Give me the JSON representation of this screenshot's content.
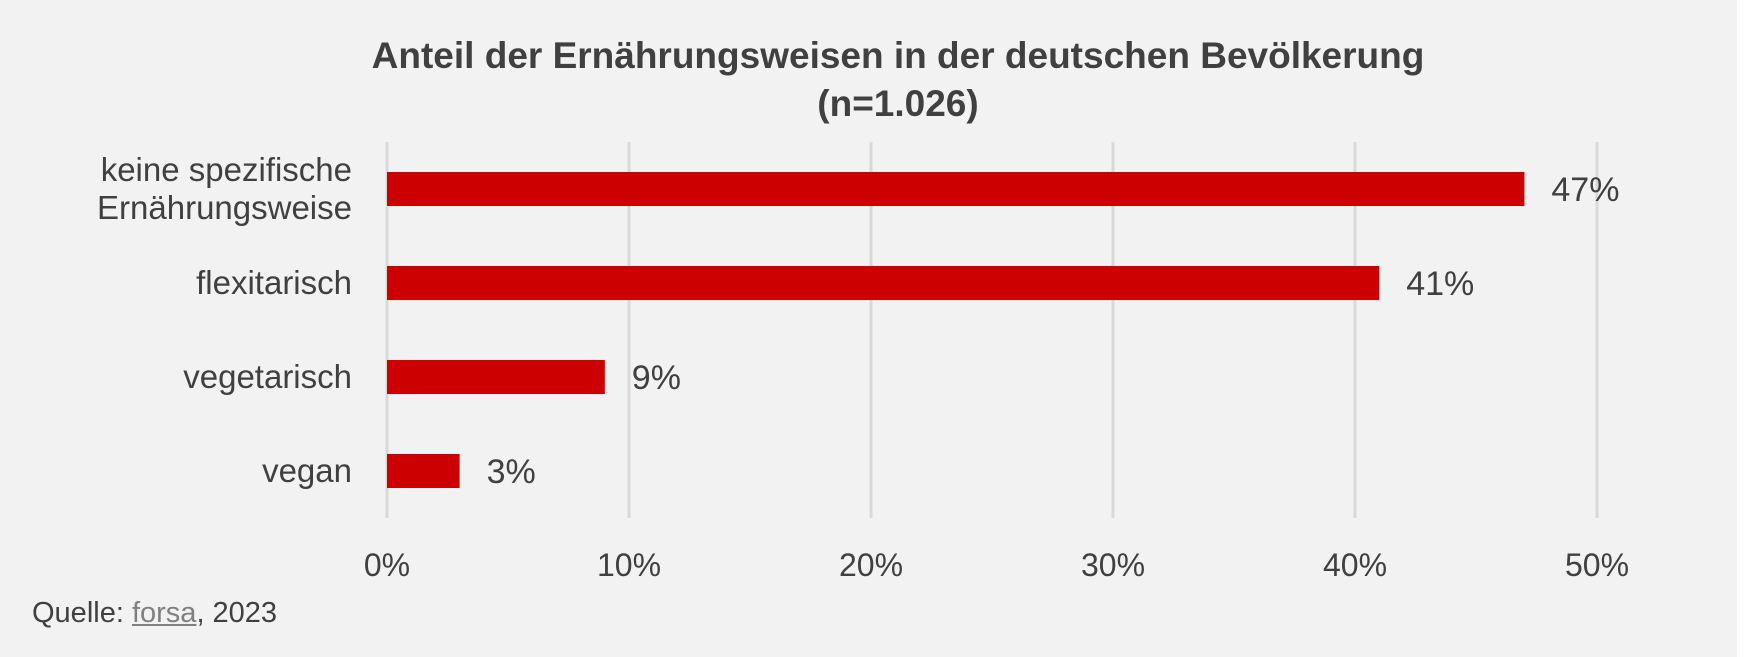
{
  "chart_data": {
    "type": "bar",
    "orientation": "horizontal",
    "title": "Anteil der Ernährungsweisen in der deutschen Bevölkerung",
    "subtitle": "(n=1.026)",
    "categories": [
      [
        "keine spezifische",
        "Ernährungsweise"
      ],
      [
        "flexitarisch"
      ],
      [
        "vegetarisch"
      ],
      [
        "vegan"
      ]
    ],
    "values": [
      47,
      41,
      9,
      3
    ],
    "value_labels": [
      "47%",
      "41%",
      "9%",
      "3%"
    ],
    "xlim": [
      0,
      50
    ],
    "x_ticks": [
      0,
      10,
      20,
      30,
      40,
      50
    ],
    "x_tick_labels": [
      "0%",
      "10%",
      "20%",
      "30%",
      "40%",
      "50%"
    ],
    "xlabel": "",
    "ylabel": "",
    "grid": "vertical",
    "legend": "none",
    "bar_color": "#cc0000",
    "background_color": "#f2f2f2",
    "text_color": "#404040",
    "grid_color": "#d9d9d9"
  },
  "source": {
    "prefix": "Quelle: ",
    "link_text": "forsa",
    "suffix": ", 2023"
  }
}
